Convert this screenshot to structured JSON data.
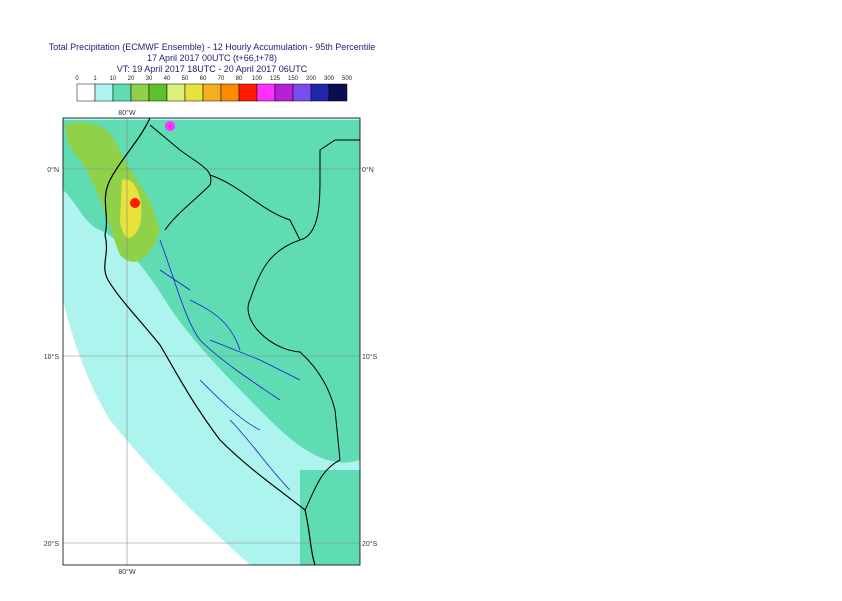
{
  "title": [
    "Total Precipitation (ECMWF Ensemble) - 12 Hourly Accumulation - 95th Percentile",
    "17 April 2017 00UTC (t+66,t+78)",
    "VT: 19 April 2017 18UTC - 20 April 2017 06UTC"
  ],
  "colorbar": {
    "labels": [
      0,
      1,
      10,
      20,
      30,
      40,
      50,
      60,
      70,
      80,
      100,
      125,
      150,
      200,
      300,
      500
    ],
    "colors": [
      "#ffffff",
      "#aef4ee",
      "#5fdcb4",
      "#8fd24a",
      "#60c02a",
      "#d8f27a",
      "#e8e23a",
      "#f0b020",
      "#ff8a00",
      "#ff1a00",
      "#ff30ff",
      "#b820d8",
      "#7a4cf0",
      "#1e28a8",
      "#0c0c50"
    ]
  },
  "map": {
    "lat_labels": [
      "0°N",
      "10°S",
      "20°S"
    ],
    "lon_label": "80°W"
  }
}
